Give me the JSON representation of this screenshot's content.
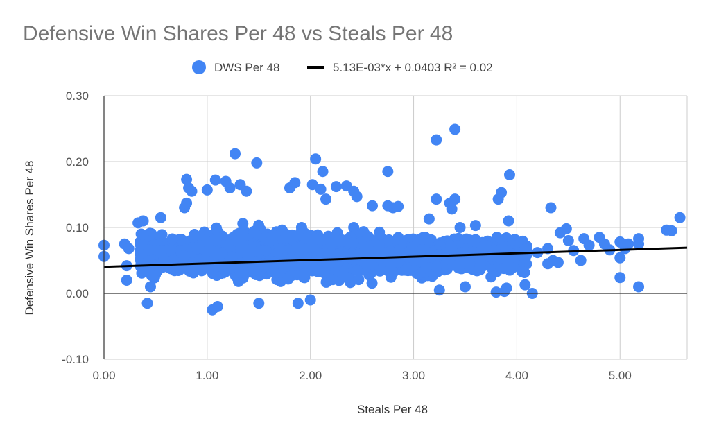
{
  "chart_data": {
    "type": "scatter",
    "title": "Defensive Win Shares Per 48 vs Steals Per 48",
    "xlabel": "Steals Per 48",
    "ylabel": "Defensive Win Shares Per 48",
    "xlim": [
      0,
      5.65
    ],
    "ylim": [
      -0.1,
      0.3
    ],
    "x_ticks": [
      "0.00",
      "1.00",
      "2.00",
      "3.00",
      "4.00",
      "5.00"
    ],
    "y_ticks": [
      "-0.10",
      "0.00",
      "0.10",
      "0.20",
      "0.30"
    ],
    "grid": true,
    "legend_position": "top",
    "series": [
      {
        "name": "DWS Per 48",
        "color": "#4285f4",
        "points": [
          [
            0.0,
            0.073
          ],
          [
            0.0,
            0.056
          ],
          [
            0.2,
            0.075
          ],
          [
            0.22,
            0.042
          ],
          [
            0.22,
            0.02
          ],
          [
            0.24,
            0.068
          ],
          [
            0.33,
            0.107
          ],
          [
            0.36,
            0.09
          ],
          [
            0.38,
            0.11
          ],
          [
            0.42,
            -0.015
          ],
          [
            0.45,
            0.01
          ],
          [
            0.55,
            0.115
          ],
          [
            0.78,
            0.13
          ],
          [
            0.8,
            0.137
          ],
          [
            0.8,
            0.173
          ],
          [
            0.82,
            0.16
          ],
          [
            0.85,
            0.155
          ],
          [
            1.0,
            0.157
          ],
          [
            1.05,
            -0.025
          ],
          [
            1.08,
            0.172
          ],
          [
            1.1,
            -0.02
          ],
          [
            1.18,
            0.17
          ],
          [
            1.22,
            0.16
          ],
          [
            1.27,
            0.212
          ],
          [
            1.32,
            0.165
          ],
          [
            1.38,
            0.155
          ],
          [
            1.48,
            0.198
          ],
          [
            1.5,
            -0.015
          ],
          [
            1.8,
            0.16
          ],
          [
            1.85,
            0.168
          ],
          [
            1.88,
            -0.015
          ],
          [
            2.0,
            -0.01
          ],
          [
            2.02,
            0.165
          ],
          [
            2.05,
            0.204
          ],
          [
            2.1,
            0.158
          ],
          [
            2.12,
            0.185
          ],
          [
            2.15,
            0.143
          ],
          [
            2.25,
            0.162
          ],
          [
            2.35,
            0.163
          ],
          [
            2.42,
            0.155
          ],
          [
            2.45,
            0.147
          ],
          [
            2.6,
            0.133
          ],
          [
            2.75,
            0.185
          ],
          [
            2.75,
            0.133
          ],
          [
            2.8,
            0.13
          ],
          [
            2.85,
            0.132
          ],
          [
            3.15,
            0.113
          ],
          [
            3.22,
            0.233
          ],
          [
            3.22,
            0.143
          ],
          [
            3.25,
            0.005
          ],
          [
            3.35,
            0.137
          ],
          [
            3.37,
            0.128
          ],
          [
            3.4,
            0.249
          ],
          [
            3.4,
            0.143
          ],
          [
            3.45,
            0.1
          ],
          [
            3.5,
            0.01
          ],
          [
            3.6,
            0.103
          ],
          [
            3.75,
            0.025
          ],
          [
            3.8,
            0.002
          ],
          [
            3.82,
            0.143
          ],
          [
            3.85,
            0.153
          ],
          [
            3.88,
            0.003
          ],
          [
            3.9,
            0.008
          ],
          [
            3.92,
            0.11
          ],
          [
            3.93,
            0.18
          ],
          [
            3.95,
            0.06
          ],
          [
            4.05,
            0.033
          ],
          [
            4.08,
            0.013
          ],
          [
            4.15,
            0.0
          ],
          [
            4.2,
            0.062
          ],
          [
            4.3,
            0.068
          ],
          [
            4.3,
            0.045
          ],
          [
            4.33,
            0.13
          ],
          [
            4.35,
            0.05
          ],
          [
            4.4,
            0.047
          ],
          [
            4.42,
            0.092
          ],
          [
            4.48,
            0.098
          ],
          [
            4.5,
            0.08
          ],
          [
            4.55,
            0.065
          ],
          [
            4.62,
            0.05
          ],
          [
            4.65,
            0.083
          ],
          [
            4.7,
            0.073
          ],
          [
            4.8,
            0.085
          ],
          [
            4.85,
            0.075
          ],
          [
            4.9,
            0.066
          ],
          [
            5.0,
            0.078
          ],
          [
            5.0,
            0.054
          ],
          [
            5.0,
            0.024
          ],
          [
            5.05,
            0.068
          ],
          [
            5.08,
            0.075
          ],
          [
            5.18,
            0.083
          ],
          [
            5.18,
            0.01
          ],
          [
            5.18,
            0.075
          ],
          [
            5.45,
            0.096
          ],
          [
            5.5,
            0.095
          ],
          [
            5.58,
            0.115
          ]
        ]
      },
      {
        "name": "5.13E-03*x + 0.0403 R² = 0.02",
        "color": "#000000",
        "type": "trendline",
        "slope": 0.00513,
        "intercept": 0.0403
      }
    ]
  }
}
